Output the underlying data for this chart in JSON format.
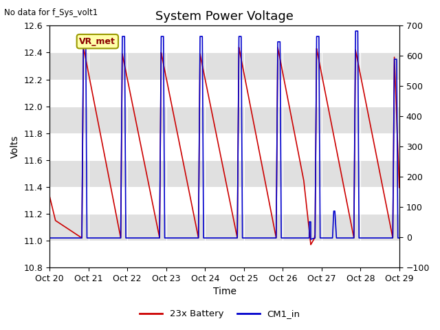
{
  "title": "System Power Voltage",
  "top_left_text": "No data for f_Sys_volt1",
  "annotation_text": "VR_met",
  "xlabel": "Time",
  "ylabel": "Volts",
  "ylim_left": [
    10.8,
    12.6
  ],
  "ylim_right": [
    -100,
    700
  ],
  "yticks_left": [
    10.8,
    11.0,
    11.2,
    11.4,
    11.6,
    11.8,
    12.0,
    12.2,
    12.4,
    12.6
  ],
  "yticks_right": [
    -100,
    0,
    100,
    200,
    300,
    400,
    500,
    600,
    700
  ],
  "xtick_labels": [
    "Oct 20",
    "Oct 21",
    "Oct 22",
    "Oct 23",
    "Oct 24",
    "Oct 25",
    "Oct 26",
    "Oct 27",
    "Oct 28",
    "Oct 29"
  ],
  "color_red": "#cc0000",
  "color_blue": "#0000cc",
  "legend_labels": [
    "23x Battery",
    "CM1_in"
  ],
  "background_plot": "#e0e0e0",
  "title_fontsize": 13,
  "label_fontsize": 10,
  "tick_fontsize": 9,
  "cycle_rises": [
    0.83,
    1.83,
    2.83,
    3.83,
    4.83,
    5.83,
    6.83,
    7.83,
    8.83
  ],
  "peak_reds": [
    12.44,
    12.39,
    12.4,
    12.39,
    12.44,
    12.44,
    12.43,
    12.42,
    12.37
  ],
  "peak_blues": [
    12.52,
    12.52,
    12.52,
    12.52,
    12.52,
    12.48,
    12.52,
    12.56,
    12.35
  ],
  "blue_plateau_end": [
    0.93,
    1.93,
    2.93,
    3.93,
    4.93,
    5.93,
    6.93,
    7.93,
    8.93
  ],
  "flat_base": 11.02,
  "rise_dur": 0.04,
  "fall_dur_blue": 0.03
}
